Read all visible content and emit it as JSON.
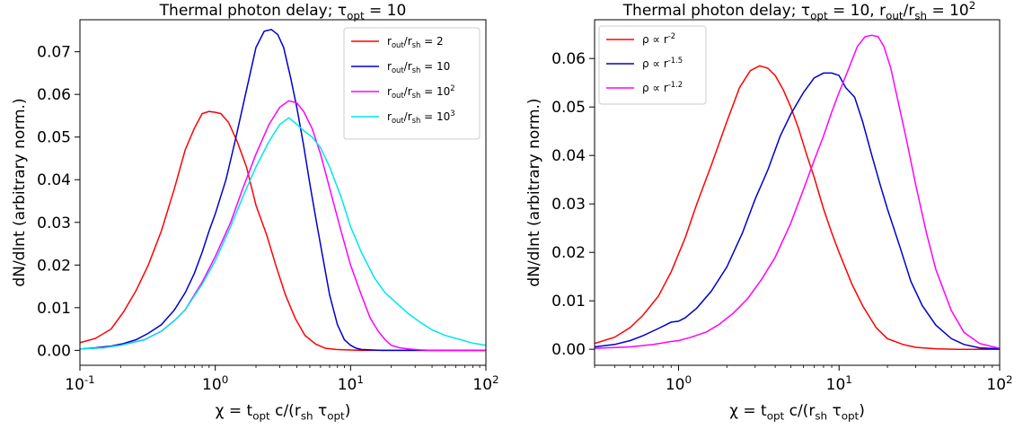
{
  "chart_data": [
    {
      "type": "line",
      "title": "Thermal photon delay; τ_opt = 10",
      "xlabel": "χ = t_opt c/(r_sh τ_opt)",
      "ylabel": "dN/dlnt (arbitrary norm.)",
      "xscale": "log",
      "xlim": [
        0.1,
        100
      ],
      "ylim": [
        -0.0035,
        0.0775
      ],
      "x_ticks": [
        0.1,
        1,
        10,
        100
      ],
      "x_tick_labels": [
        "10^-1",
        "10^0",
        "10^1",
        "10^2"
      ],
      "y_ticks": [
        0.0,
        0.01,
        0.02,
        0.03,
        0.04,
        0.05,
        0.06,
        0.07
      ],
      "y_tick_labels": [
        "0.00",
        "0.01",
        "0.02",
        "0.03",
        "0.04",
        "0.05",
        "0.06",
        "0.07"
      ],
      "grid": false,
      "legend_position": "top-right",
      "series": [
        {
          "name": "r_out/r_sh = 2",
          "color": "#ff0000",
          "x": [
            0.1,
            0.13,
            0.17,
            0.21,
            0.26,
            0.32,
            0.4,
            0.5,
            0.6,
            0.7,
            0.8,
            0.9,
            1.0,
            1.1,
            1.25,
            1.45,
            1.7,
            2.0,
            2.4,
            2.8,
            3.3,
            3.9,
            4.6,
            5.5,
            6.5,
            7.8,
            9.5,
            12,
            15,
            20,
            30,
            50,
            100
          ],
          "values": [
            0.0018,
            0.0028,
            0.005,
            0.009,
            0.014,
            0.02,
            0.028,
            0.038,
            0.047,
            0.052,
            0.0555,
            0.056,
            0.0558,
            0.0555,
            0.0535,
            0.049,
            0.043,
            0.034,
            0.027,
            0.02,
            0.013,
            0.0075,
            0.0035,
            0.0015,
            0.0005,
            0.0002,
            0.0001,
            0.0,
            0.0,
            0.0,
            0.0,
            0.0,
            0.0
          ]
        },
        {
          "name": "r_out/r_sh = 10",
          "color": "#0000cc",
          "x": [
            0.1,
            0.13,
            0.17,
            0.21,
            0.26,
            0.32,
            0.4,
            0.5,
            0.6,
            0.7,
            0.8,
            0.9,
            1.0,
            1.2,
            1.4,
            1.7,
            2.0,
            2.3,
            2.6,
            2.9,
            3.2,
            3.6,
            4.0,
            4.5,
            5.0,
            5.6,
            6.3,
            7.0,
            8.0,
            9.0,
            10,
            11,
            12,
            14,
            17,
            25,
            50,
            100
          ],
          "values": [
            0.0003,
            0.0006,
            0.001,
            0.0016,
            0.0025,
            0.004,
            0.006,
            0.0095,
            0.0135,
            0.018,
            0.023,
            0.028,
            0.032,
            0.04,
            0.049,
            0.061,
            0.071,
            0.0748,
            0.0752,
            0.074,
            0.071,
            0.064,
            0.057,
            0.048,
            0.039,
            0.03,
            0.021,
            0.013,
            0.006,
            0.0025,
            0.0012,
            0.0005,
            0.0002,
            0.0001,
            0.0,
            0.0,
            0.0,
            0.0
          ]
        },
        {
          "name": "r_out/r_sh = 10^2",
          "color": "#ff00ff",
          "x": [
            0.1,
            0.15,
            0.2,
            0.3,
            0.4,
            0.5,
            0.6,
            0.8,
            1.0,
            1.3,
            1.6,
            2.0,
            2.5,
            3.0,
            3.5,
            4.0,
            4.5,
            5.2,
            6.0,
            7.0,
            8.5,
            10,
            12,
            14,
            16,
            18,
            20,
            23,
            27,
            33,
            40,
            55,
            75,
            100
          ],
          "values": [
            0.0003,
            0.0006,
            0.0012,
            0.0025,
            0.0045,
            0.007,
            0.0095,
            0.016,
            0.022,
            0.03,
            0.038,
            0.046,
            0.053,
            0.057,
            0.0585,
            0.058,
            0.056,
            0.052,
            0.046,
            0.038,
            0.028,
            0.02,
            0.013,
            0.0075,
            0.0045,
            0.0025,
            0.0012,
            0.0006,
            0.0003,
            0.0001,
            0.0,
            0.0,
            0.0,
            0.0
          ]
        },
        {
          "name": "r_out/r_sh = 10^3",
          "color": "#00e5ee",
          "x": [
            0.1,
            0.15,
            0.2,
            0.3,
            0.4,
            0.5,
            0.6,
            0.8,
            1.0,
            1.3,
            1.6,
            2.0,
            2.5,
            3.0,
            3.5,
            4.0,
            4.5,
            5.2,
            6.0,
            7.0,
            8.5,
            10,
            12,
            15,
            18,
            22,
            27,
            33,
            40,
            50,
            65,
            80,
            100
          ],
          "values": [
            0.0003,
            0.0006,
            0.0012,
            0.0025,
            0.0045,
            0.007,
            0.0095,
            0.0155,
            0.021,
            0.029,
            0.036,
            0.043,
            0.049,
            0.053,
            0.0545,
            0.053,
            0.0515,
            0.05,
            0.0475,
            0.043,
            0.036,
            0.029,
            0.023,
            0.017,
            0.0135,
            0.011,
            0.0085,
            0.0065,
            0.0048,
            0.0035,
            0.0025,
            0.0017,
            0.0012
          ]
        }
      ]
    },
    {
      "type": "line",
      "title": "Thermal photon delay; τ_opt = 10, r_out/r_sh = 10^2",
      "xlabel": "χ = t_opt c/(r_sh τ_opt)",
      "ylabel": "dN/dlnt (arbitrary norm.)",
      "xscale": "log",
      "xlim": [
        0.3,
        100
      ],
      "ylim": [
        -0.0033,
        0.068
      ],
      "x_ticks": [
        1,
        10,
        100
      ],
      "x_tick_labels": [
        "10^0",
        "10^1",
        "10^2"
      ],
      "y_ticks": [
        0.0,
        0.01,
        0.02,
        0.03,
        0.04,
        0.05,
        0.06
      ],
      "y_tick_labels": [
        "0.00",
        "0.01",
        "0.02",
        "0.03",
        "0.04",
        "0.05",
        "0.06"
      ],
      "grid": false,
      "legend_position": "top-left",
      "series": [
        {
          "name": "ρ ∝ r^-2",
          "color": "#ff0000",
          "x": [
            0.3,
            0.4,
            0.5,
            0.6,
            0.75,
            0.9,
            1.1,
            1.3,
            1.6,
            2.0,
            2.4,
            2.8,
            3.2,
            3.6,
            4.0,
            4.5,
            5.0,
            5.6,
            6.3,
            7.0,
            8.0,
            9.0,
            10,
            12,
            14,
            17,
            20,
            25,
            30,
            40,
            55,
            75,
            100
          ],
          "values": [
            0.0012,
            0.0025,
            0.0045,
            0.007,
            0.011,
            0.016,
            0.023,
            0.03,
            0.038,
            0.047,
            0.054,
            0.0575,
            0.0585,
            0.058,
            0.0565,
            0.0535,
            0.05,
            0.0455,
            0.04,
            0.0355,
            0.029,
            0.024,
            0.02,
            0.0135,
            0.009,
            0.0045,
            0.0022,
            0.001,
            0.0004,
            0.0001,
            0.0,
            0.0,
            0.0
          ]
        },
        {
          "name": "ρ ∝ r^-1.5",
          "color": "#0000cc",
          "x": [
            0.3,
            0.4,
            0.5,
            0.6,
            0.75,
            0.9,
            1.0,
            1.1,
            1.3,
            1.6,
            2.0,
            2.5,
            3.0,
            3.6,
            4.3,
            5.0,
            6.0,
            7.0,
            8.0,
            9.0,
            10,
            11,
            12.5,
            14,
            16,
            18,
            20,
            24,
            28,
            33,
            40,
            50,
            60,
            75,
            100
          ],
          "values": [
            0.0005,
            0.001,
            0.0018,
            0.0028,
            0.0043,
            0.0056,
            0.0058,
            0.0065,
            0.0085,
            0.012,
            0.017,
            0.024,
            0.031,
            0.037,
            0.044,
            0.0485,
            0.053,
            0.056,
            0.057,
            0.057,
            0.0565,
            0.054,
            0.052,
            0.047,
            0.04,
            0.034,
            0.029,
            0.021,
            0.014,
            0.009,
            0.005,
            0.0022,
            0.001,
            0.0003,
            0.0001
          ]
        },
        {
          "name": "ρ ∝ r^-1.2",
          "color": "#ff00ff",
          "x": [
            0.3,
            0.5,
            0.7,
            0.9,
            1.0,
            1.2,
            1.5,
            1.8,
            2.2,
            2.7,
            3.3,
            4.0,
            5.0,
            6.0,
            7.0,
            8.0,
            9.0,
            10,
            11.5,
            13,
            14.5,
            16,
            17.5,
            19,
            21,
            23,
            26,
            30,
            35,
            40,
            50,
            60,
            75,
            100
          ],
          "values": [
            0.0002,
            0.0005,
            0.001,
            0.0016,
            0.0018,
            0.0025,
            0.0036,
            0.0052,
            0.0075,
            0.0105,
            0.0145,
            0.019,
            0.026,
            0.033,
            0.039,
            0.044,
            0.049,
            0.053,
            0.058,
            0.0625,
            0.0645,
            0.0648,
            0.0645,
            0.0625,
            0.058,
            0.052,
            0.044,
            0.034,
            0.024,
            0.0165,
            0.008,
            0.0035,
            0.0012,
            0.0002
          ]
        }
      ]
    }
  ]
}
